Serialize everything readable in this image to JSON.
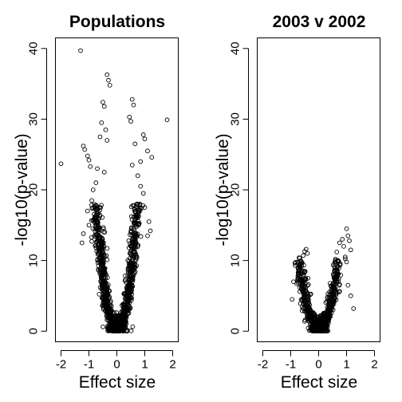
{
  "chart_data": [
    {
      "type": "scatter",
      "title": "Populations",
      "xlabel": "Effect size",
      "ylabel": "-log10(p-value)",
      "xlim": [
        -2.2,
        2.2
      ],
      "ylim": [
        -1.5,
        41.5
      ],
      "x_ticks": [
        -2,
        -1,
        0,
        1,
        2
      ],
      "y_ticks": [
        0,
        10,
        20,
        30,
        40
      ],
      "grid": false,
      "marker": "open-circle",
      "shape": "volcano",
      "core_point_count": 1100,
      "core_max_y": 18,
      "core_half_width_at_max": 0.75,
      "labeled_points": [
        {
          "x": -1.3,
          "y": 39.7
        },
        {
          "x": -0.35,
          "y": 36.3
        },
        {
          "x": -0.3,
          "y": 35.5
        },
        {
          "x": -0.25,
          "y": 34.8
        },
        {
          "x": -0.5,
          "y": 32.4
        },
        {
          "x": -0.45,
          "y": 31.8
        },
        {
          "x": 0.55,
          "y": 32.8
        },
        {
          "x": 0.6,
          "y": 32.0
        },
        {
          "x": 0.45,
          "y": 30.3
        },
        {
          "x": 0.5,
          "y": 29.7
        },
        {
          "x": 1.8,
          "y": 29.9
        },
        {
          "x": -0.55,
          "y": 29.5
        },
        {
          "x": -0.4,
          "y": 28.5
        },
        {
          "x": -0.6,
          "y": 27.5
        },
        {
          "x": -0.35,
          "y": 27.0
        },
        {
          "x": 0.95,
          "y": 27.8
        },
        {
          "x": 1.0,
          "y": 27.2
        },
        {
          "x": 0.65,
          "y": 26.5
        },
        {
          "x": -1.2,
          "y": 26.2
        },
        {
          "x": -1.15,
          "y": 25.7
        },
        {
          "x": 1.1,
          "y": 25.5
        },
        {
          "x": 1.25,
          "y": 24.6
        },
        {
          "x": -1.05,
          "y": 24.8
        },
        {
          "x": -1.0,
          "y": 24.2
        },
        {
          "x": 0.85,
          "y": 24.0
        },
        {
          "x": -2.0,
          "y": 23.7
        },
        {
          "x": -0.95,
          "y": 23.3
        },
        {
          "x": -0.7,
          "y": 23.0
        },
        {
          "x": -0.45,
          "y": 22.5
        },
        {
          "x": 0.55,
          "y": 23.5
        },
        {
          "x": 0.75,
          "y": 22.0
        },
        {
          "x": -0.75,
          "y": 21.0
        },
        {
          "x": 0.85,
          "y": 20.5
        },
        {
          "x": -0.85,
          "y": 20.0
        },
        {
          "x": 0.95,
          "y": 19.5
        },
        {
          "x": -0.9,
          "y": 18.5
        },
        {
          "x": -1.05,
          "y": 17.0
        },
        {
          "x": 1.0,
          "y": 17.5
        },
        {
          "x": -1.2,
          "y": 13.8
        },
        {
          "x": -1.0,
          "y": 15.0
        },
        {
          "x": 1.15,
          "y": 15.5
        },
        {
          "x": 1.2,
          "y": 14.2
        },
        {
          "x": -1.25,
          "y": 12.5
        },
        {
          "x": -0.9,
          "y": 12.7
        },
        {
          "x": 1.1,
          "y": 13.5
        }
      ]
    },
    {
      "type": "scatter",
      "title": "2003 v 2002",
      "xlabel": "Effect size",
      "ylabel": "-log10(p-value)",
      "xlim": [
        -2.2,
        2.2
      ],
      "ylim": [
        -1.5,
        41.5
      ],
      "x_ticks": [
        -2,
        -1,
        0,
        1,
        2
      ],
      "y_ticks": [
        0,
        10,
        20,
        30,
        40
      ],
      "grid": false,
      "marker": "open-circle",
      "shape": "volcano",
      "core_point_count": 650,
      "core_max_y": 10,
      "core_half_width_at_max": 0.7,
      "labeled_points": [
        {
          "x": 1.0,
          "y": 14.5
        },
        {
          "x": 1.05,
          "y": 13.5
        },
        {
          "x": 1.1,
          "y": 12.8
        },
        {
          "x": 0.85,
          "y": 13.0
        },
        {
          "x": 0.75,
          "y": 12.5
        },
        {
          "x": 0.9,
          "y": 12.0
        },
        {
          "x": -0.45,
          "y": 11.6
        },
        {
          "x": -0.5,
          "y": 11.3
        },
        {
          "x": -0.4,
          "y": 11.0
        },
        {
          "x": 0.65,
          "y": 11.2
        },
        {
          "x": 1.15,
          "y": 11.5
        },
        {
          "x": -0.55,
          "y": 10.7
        },
        {
          "x": 0.95,
          "y": 10.5
        },
        {
          "x": -0.7,
          "y": 10.4
        },
        {
          "x": 1.0,
          "y": 9.8
        },
        {
          "x": -0.9,
          "y": 7.0
        },
        {
          "x": 1.05,
          "y": 6.5
        },
        {
          "x": 1.15,
          "y": 5.0
        },
        {
          "x": 1.25,
          "y": 3.2
        },
        {
          "x": -0.95,
          "y": 4.5
        }
      ]
    }
  ]
}
